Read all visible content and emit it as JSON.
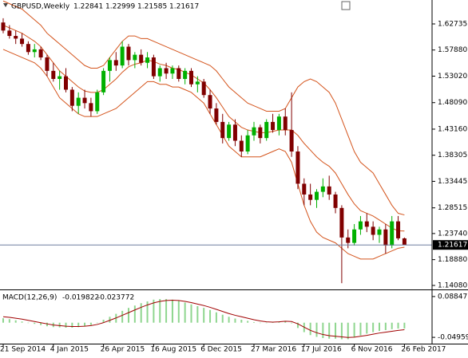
{
  "chart_data": [
    {
      "type": "candlestick",
      "title": "GBPUSD,Weekly",
      "categories": [
        "21 Sep 2014",
        null,
        null,
        null,
        null,
        null,
        null,
        null,
        "4 Jan 2015",
        null,
        null,
        null,
        null,
        null,
        null,
        null,
        "26 Apr 2015",
        null,
        null,
        null,
        null,
        null,
        null,
        null,
        "16 Aug 2015",
        null,
        null,
        null,
        null,
        null,
        null,
        null,
        "6 Dec 2015",
        null,
        null,
        null,
        null,
        null,
        null,
        null,
        "27 Mar 2016",
        null,
        null,
        null,
        null,
        null,
        null,
        null,
        "17 Jul 2016",
        null,
        null,
        null,
        null,
        null,
        null,
        null,
        "6 Nov 2016",
        null,
        null,
        null,
        null,
        null,
        null,
        null,
        "26 Feb 2017"
      ],
      "ohlc": [
        [
          1.63,
          1.638,
          1.61,
          1.615
        ],
        [
          1.615,
          1.625,
          1.6,
          1.605
        ],
        [
          1.605,
          1.615,
          1.59,
          1.6
        ],
        [
          1.6,
          1.61,
          1.585,
          1.59
        ],
        [
          1.59,
          1.595,
          1.57,
          1.575
        ],
        [
          1.575,
          1.59,
          1.565,
          1.58
        ],
        [
          1.58,
          1.585,
          1.56,
          1.565
        ],
        [
          1.565,
          1.57,
          1.53,
          1.54
        ],
        [
          1.54,
          1.555,
          1.52,
          1.525
        ],
        [
          1.525,
          1.54,
          1.505,
          1.53
        ],
        [
          1.53,
          1.545,
          1.5,
          1.505
        ],
        [
          1.505,
          1.51,
          1.465,
          1.475
        ],
        [
          1.475,
          1.5,
          1.46,
          1.49
        ],
        [
          1.49,
          1.505,
          1.47,
          1.48
        ],
        [
          1.48,
          1.49,
          1.455,
          1.465
        ],
        [
          1.465,
          1.505,
          1.46,
          1.5
        ],
        [
          1.5,
          1.545,
          1.495,
          1.54
        ],
        [
          1.54,
          1.565,
          1.52,
          1.56
        ],
        [
          1.56,
          1.575,
          1.54,
          1.55
        ],
        [
          1.55,
          1.595,
          1.545,
          1.585
        ],
        [
          1.585,
          1.59,
          1.55,
          1.56
        ],
        [
          1.56,
          1.575,
          1.545,
          1.57
        ],
        [
          1.57,
          1.58,
          1.55,
          1.555
        ],
        [
          1.555,
          1.575,
          1.545,
          1.565
        ],
        [
          1.565,
          1.57,
          1.525,
          1.53
        ],
        [
          1.53,
          1.55,
          1.52,
          1.545
        ],
        [
          1.545,
          1.555,
          1.525,
          1.535
        ],
        [
          1.535,
          1.55,
          1.525,
          1.545
        ],
        [
          1.545,
          1.55,
          1.52,
          1.525
        ],
        [
          1.525,
          1.545,
          1.515,
          1.54
        ],
        [
          1.54,
          1.545,
          1.51,
          1.515
        ],
        [
          1.515,
          1.53,
          1.5,
          1.52
        ],
        [
          1.52,
          1.525,
          1.49,
          1.495
        ],
        [
          1.495,
          1.505,
          1.46,
          1.47
        ],
        [
          1.47,
          1.48,
          1.44,
          1.445
        ],
        [
          1.445,
          1.46,
          1.405,
          1.415
        ],
        [
          1.415,
          1.445,
          1.41,
          1.44
        ],
        [
          1.44,
          1.45,
          1.4,
          1.41
        ],
        [
          1.41,
          1.42,
          1.38,
          1.39
        ],
        [
          1.39,
          1.43,
          1.385,
          1.42
        ],
        [
          1.42,
          1.445,
          1.41,
          1.435
        ],
        [
          1.435,
          1.44,
          1.405,
          1.415
        ],
        [
          1.415,
          1.45,
          1.41,
          1.445
        ],
        [
          1.445,
          1.46,
          1.425,
          1.43
        ],
        [
          1.43,
          1.46,
          1.42,
          1.455
        ],
        [
          1.455,
          1.47,
          1.42,
          1.43
        ],
        [
          1.43,
          1.5,
          1.38,
          1.39
        ],
        [
          1.39,
          1.4,
          1.32,
          1.33
        ],
        [
          1.33,
          1.34,
          1.29,
          1.31
        ],
        [
          1.31,
          1.33,
          1.29,
          1.3
        ],
        [
          1.3,
          1.32,
          1.285,
          1.315
        ],
        [
          1.315,
          1.34,
          1.305,
          1.325
        ],
        [
          1.325,
          1.345,
          1.3,
          1.31
        ],
        [
          1.31,
          1.315,
          1.275,
          1.285
        ],
        [
          1.285,
          1.29,
          1.145,
          1.23
        ],
        [
          1.23,
          1.245,
          1.21,
          1.22
        ],
        [
          1.22,
          1.255,
          1.215,
          1.245
        ],
        [
          1.245,
          1.27,
          1.235,
          1.26
        ],
        [
          1.26,
          1.275,
          1.24,
          1.25
        ],
        [
          1.25,
          1.26,
          1.225,
          1.235
        ],
        [
          1.235,
          1.25,
          1.22,
          1.245
        ],
        [
          1.245,
          1.255,
          1.2,
          1.215
        ],
        [
          1.215,
          1.27,
          1.21,
          1.26
        ],
        [
          1.26,
          1.27,
          1.225,
          1.22841
        ],
        [
          1.22841,
          1.22999,
          1.21585,
          1.21617
        ]
      ],
      "bands": {
        "upper": [
          1.67,
          1.665,
          1.66,
          1.655,
          1.645,
          1.635,
          1.625,
          1.61,
          1.6,
          1.59,
          1.58,
          1.57,
          1.56,
          1.55,
          1.545,
          1.545,
          1.55,
          1.565,
          1.58,
          1.595,
          1.605,
          1.605,
          1.6,
          1.6,
          1.595,
          1.59,
          1.585,
          1.58,
          1.575,
          1.57,
          1.565,
          1.56,
          1.555,
          1.55,
          1.54,
          1.525,
          1.51,
          1.5,
          1.49,
          1.48,
          1.475,
          1.47,
          1.465,
          1.465,
          1.465,
          1.47,
          1.49,
          1.51,
          1.52,
          1.525,
          1.52,
          1.51,
          1.5,
          1.48,
          1.45,
          1.42,
          1.39,
          1.37,
          1.36,
          1.35,
          1.33,
          1.31,
          1.29,
          1.275,
          1.272
        ],
        "middle": [
          1.625,
          1.62,
          1.615,
          1.61,
          1.6025,
          1.595,
          1.585,
          1.57,
          1.555,
          1.54,
          1.53,
          1.52,
          1.51,
          1.5025,
          1.5,
          1.5,
          1.505,
          1.515,
          1.525,
          1.5375,
          1.5475,
          1.5525,
          1.555,
          1.56,
          1.5575,
          1.5525,
          1.55,
          1.545,
          1.5425,
          1.5375,
          1.5325,
          1.525,
          1.5175,
          1.505,
          1.49,
          1.4725,
          1.455,
          1.445,
          1.435,
          1.43,
          1.4275,
          1.425,
          1.425,
          1.4275,
          1.43,
          1.43,
          1.43,
          1.42,
          1.405,
          1.3925,
          1.38,
          1.37,
          1.3625,
          1.35,
          1.33,
          1.31,
          1.2925,
          1.28,
          1.275,
          1.27,
          1.2625,
          1.255,
          1.2475,
          1.2425,
          1.242
        ],
        "lower": [
          1.58,
          1.575,
          1.57,
          1.565,
          1.56,
          1.555,
          1.545,
          1.53,
          1.51,
          1.49,
          1.48,
          1.47,
          1.46,
          1.455,
          1.455,
          1.455,
          1.46,
          1.465,
          1.47,
          1.48,
          1.49,
          1.5,
          1.51,
          1.52,
          1.52,
          1.515,
          1.515,
          1.51,
          1.51,
          1.505,
          1.5,
          1.49,
          1.48,
          1.46,
          1.44,
          1.42,
          1.4,
          1.39,
          1.38,
          1.38,
          1.38,
          1.38,
          1.385,
          1.39,
          1.395,
          1.39,
          1.37,
          1.33,
          1.29,
          1.26,
          1.24,
          1.23,
          1.225,
          1.22,
          1.21,
          1.2,
          1.195,
          1.19,
          1.19,
          1.19,
          1.195,
          1.2,
          1.205,
          1.21,
          1.212
        ]
      },
      "band_color": "#d4541c",
      "up_color": "#00b000",
      "down_color": "#800000",
      "price_line_color": "#6f7f9f",
      "ylim": [
        1.13487,
        1.67185
      ],
      "yticks": [
        1.62735,
        {
          "value": 1.5788,
          "label": "1.57880"
        },
        {
          "value": 1.5302,
          "label": "1.53020"
        },
        {
          "value": 1.4809,
          "label": "1.48090"
        },
        {
          "value": 1.4316,
          "label": "1.43160"
        },
        1.38305,
        1.33445,
        1.28515,
        {
          "value": 1.2374,
          "label": "1.23740"
        },
        {
          "value": 1.1888,
          "label": "1.18880"
        },
        {
          "value": 1.1408,
          "label": "1.14080"
        }
      ]
    },
    {
      "type": "macd",
      "title": "MACD(12,26,9)",
      "values": [
        0.015,
        0.012,
        0.008,
        0.004,
        0.0,
        -0.004,
        -0.008,
        -0.012,
        -0.015,
        -0.016,
        -0.017,
        -0.017,
        -0.015,
        -0.012,
        -0.008,
        0.0,
        0.01,
        0.02,
        0.03,
        0.04,
        0.05,
        0.058,
        0.066,
        0.072,
        0.078,
        0.08,
        0.08,
        0.078,
        0.074,
        0.068,
        0.062,
        0.056,
        0.05,
        0.043,
        0.035,
        0.027,
        0.02,
        0.014,
        0.01,
        0.006,
        0.002,
        0.0,
        -0.001,
        0.001,
        0.004,
        0.006,
        -0.002,
        -0.018,
        -0.032,
        -0.042,
        -0.048,
        -0.052,
        -0.054,
        -0.054,
        -0.056,
        -0.056,
        -0.05,
        -0.043,
        -0.037,
        -0.032,
        -0.028,
        -0.025,
        -0.022,
        -0.02,
        -0.019822
      ],
      "signal": [
        0.02,
        0.018,
        0.015,
        0.012,
        0.008,
        0.004,
        0.0,
        -0.004,
        -0.008,
        -0.01,
        -0.012,
        -0.013,
        -0.013,
        -0.012,
        -0.01,
        -0.006,
        0.0,
        0.008,
        0.016,
        0.025,
        0.034,
        0.043,
        0.052,
        0.06,
        0.067,
        0.072,
        0.075,
        0.076,
        0.075,
        0.072,
        0.068,
        0.063,
        0.058,
        0.052,
        0.045,
        0.038,
        0.031,
        0.025,
        0.02,
        0.015,
        0.01,
        0.006,
        0.003,
        0.002,
        0.003,
        0.005,
        0.004,
        -0.004,
        -0.015,
        -0.026,
        -0.034,
        -0.04,
        -0.044,
        -0.046,
        -0.048,
        -0.05,
        -0.049,
        -0.046,
        -0.043,
        -0.039,
        -0.035,
        -0.032,
        -0.029,
        -0.026,
        -0.023772
      ],
      "bar_color": "#8fd68f",
      "signal_color": "#a00000",
      "ylim": [
        -0.0682,
        0.1071
      ],
      "yticks": [
        0.08847,
        -0.049591
      ]
    }
  ]
}
